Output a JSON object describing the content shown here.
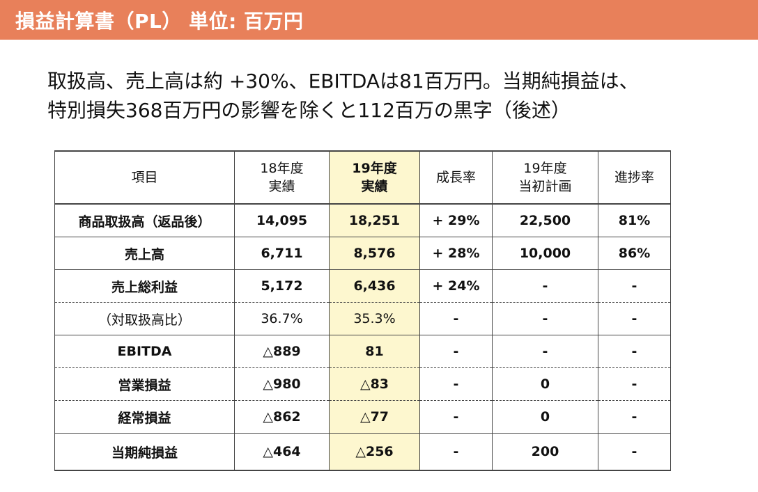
{
  "header": {
    "title": "損益計算書（PL） 単位: 百万円"
  },
  "summary": {
    "line1": "取扱高、売上高は約 +30%、EBITDAは81百万円。当期純損益は、",
    "line2": "特別損失368百万円の影響を除くと112百万の黒字（後述）"
  },
  "table": {
    "headers": {
      "item": "項目",
      "fy18": "18年度\n実績",
      "fy19": "19年度\n実績",
      "growth": "成長率",
      "plan": "19年度\n当初計画",
      "progress": "進捗率"
    },
    "rows": [
      {
        "item": "商品取扱高（返品後）",
        "fy18": "14,095",
        "fy19": "18,251",
        "growth": "+ 29%",
        "plan": "22,500",
        "progress": "81%"
      },
      {
        "item": "売上高",
        "fy18": "6,711",
        "fy19": "8,576",
        "growth": "+ 28%",
        "plan": "10,000",
        "progress": "86%"
      },
      {
        "item": "売上総利益",
        "fy18": "5,172",
        "fy19": "6,436",
        "growth": "+ 24%",
        "plan": "-",
        "progress": "-"
      },
      {
        "item": "（対取扱高比）",
        "fy18": "36.7%",
        "fy19": "35.3%",
        "growth": "-",
        "plan": "-",
        "progress": "-"
      },
      {
        "item": "EBITDA",
        "fy18": "△889",
        "fy19": "81",
        "growth": "-",
        "plan": "-",
        "progress": "-"
      },
      {
        "item": "営業損益",
        "fy18": "△980",
        "fy19": "△83",
        "growth": "-",
        "plan": "0",
        "progress": "-"
      },
      {
        "item": "経常損益",
        "fy18": "△862",
        "fy19": "△77",
        "growth": "-",
        "plan": "0",
        "progress": "-"
      },
      {
        "item": "当期純損益",
        "fy18": "△464",
        "fy19": "△256",
        "growth": "-",
        "plan": "200",
        "progress": "-"
      }
    ]
  },
  "colors": {
    "header_bg": "#e8805a",
    "highlight_bg": "#fdf7cf"
  }
}
